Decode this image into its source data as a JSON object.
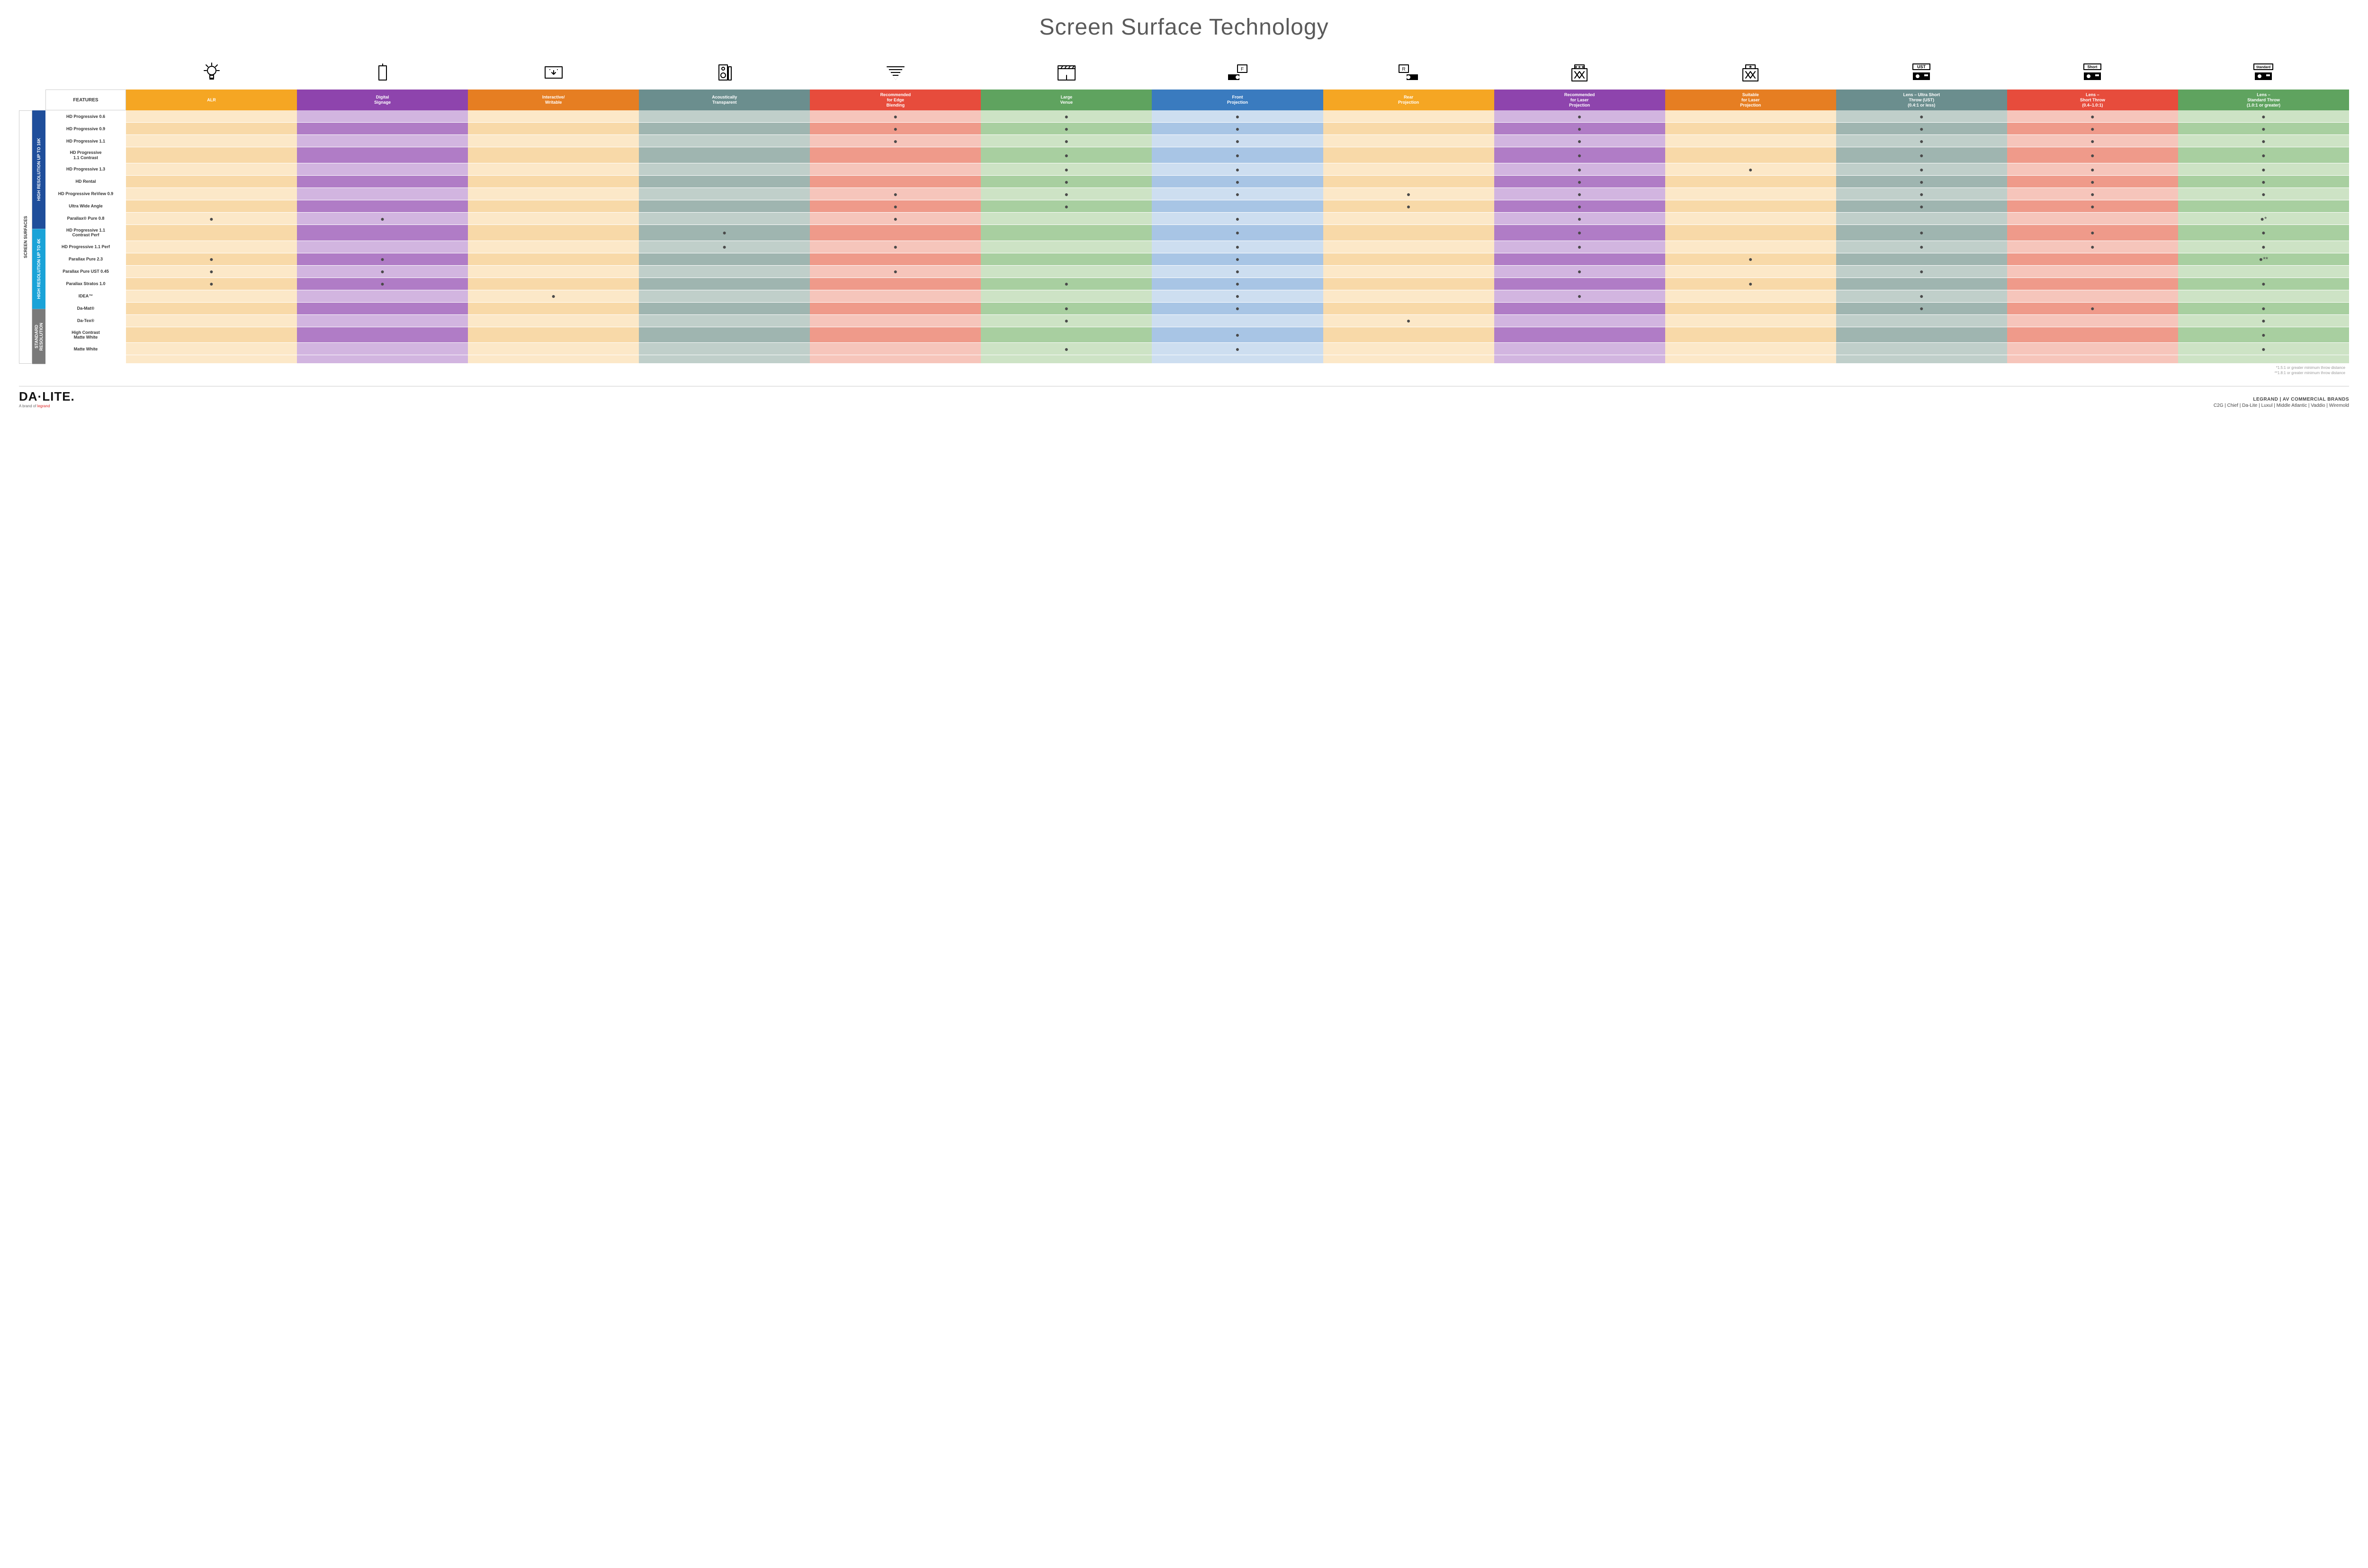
{
  "title": "Screen Surface Technology",
  "features_label": "FEATURES",
  "columns": [
    {
      "key": "alr",
      "label": "ALR",
      "color": "#f5a623",
      "alt": "#f8d9a8",
      "alt2": "#fce8c8"
    },
    {
      "key": "digital",
      "label": "Digital\nSignage",
      "color": "#8e44ad",
      "alt": "#b07cc6",
      "alt2": "#d2b5e0"
    },
    {
      "key": "interactive",
      "label": "Interactive/\nWritable",
      "color": "#e67e22",
      "alt": "#f8d9a8",
      "alt2": "#fce8c8"
    },
    {
      "key": "acoustic",
      "label": "Acoustically\nTransparent",
      "color": "#6b8e8e",
      "alt": "#9fb5b0",
      "alt2": "#c0cfca"
    },
    {
      "key": "edge",
      "label": "Recommended\nfor Edge\nBlending",
      "color": "#e74c3c",
      "alt": "#ef9a8a",
      "alt2": "#f6c5bb"
    },
    {
      "key": "large",
      "label": "Large\nVenue",
      "color": "#5fa35f",
      "alt": "#a8cfa0",
      "alt2": "#cde3c5"
    },
    {
      "key": "front",
      "label": "Front\nProjection",
      "color": "#3a7bbf",
      "alt": "#a8c5e5",
      "alt2": "#cddef0"
    },
    {
      "key": "rear",
      "label": "Rear\nProjection",
      "color": "#f5a623",
      "alt": "#f8d9a8",
      "alt2": "#fce8c8"
    },
    {
      "key": "reclaser",
      "label": "Recommended\nfor Laser\nProjection",
      "color": "#8e44ad",
      "alt": "#b07cc6",
      "alt2": "#d2b5e0"
    },
    {
      "key": "suitlaser",
      "label": "Suitable\nfor Laser\nProjection",
      "color": "#e67e22",
      "alt": "#f8d9a8",
      "alt2": "#fce8c8"
    },
    {
      "key": "ust",
      "label": "Lens – Ultra Short\nThrow (UST)\n(0.4:1 or less)",
      "color": "#6b8e8e",
      "alt": "#9fb5b0",
      "alt2": "#c0cfca"
    },
    {
      "key": "short",
      "label": "Lens –\nShort Throw\n(0.4–1.0:1)",
      "color": "#e74c3c",
      "alt": "#ef9a8a",
      "alt2": "#f6c5bb"
    },
    {
      "key": "std",
      "label": "Lens –\nStandard Throw\n(1.0:1 or greater)",
      "color": "#5fa35f",
      "alt": "#a8cfa0",
      "alt2": "#cde3c5"
    }
  ],
  "side_outer": {
    "label": "SCREEN SURFACES",
    "color": "#ffffff",
    "text": "#333"
  },
  "groups": [
    {
      "label": "HIGH RESOLUTION UP TO 16K",
      "color": "#1f4e9b",
      "rows": [
        {
          "name": "HD Progressive 0.6",
          "dots": {
            "edge": "●",
            "large": "●",
            "front": "●",
            "reclaser": "●",
            "ust": "●",
            "short": "●",
            "std": "●"
          }
        },
        {
          "name": "HD Progressive 0.9",
          "dots": {
            "edge": "●",
            "large": "●",
            "front": "●",
            "reclaser": "●",
            "ust": "●",
            "short": "●",
            "std": "●"
          }
        },
        {
          "name": "HD Progressive 1.1",
          "dots": {
            "edge": "●",
            "large": "●",
            "front": "●",
            "reclaser": "●",
            "ust": "●",
            "short": "●",
            "std": "●"
          }
        },
        {
          "name": "HD Progressive\n1.1 Contrast",
          "dots": {
            "large": "●",
            "front": "●",
            "reclaser": "●",
            "ust": "●",
            "short": "●",
            "std": "●"
          }
        },
        {
          "name": "HD Progressive 1.3",
          "dots": {
            "large": "●",
            "front": "●",
            "reclaser": "●",
            "suitlaser": "●",
            "ust": "●",
            "short": "●",
            "std": "●"
          }
        },
        {
          "name": "HD Rental",
          "dots": {
            "large": "●",
            "front": "●",
            "reclaser": "●",
            "ust": "●",
            "short": "●",
            "std": "●"
          }
        },
        {
          "name": "HD Progressive ReView 0.9",
          "dots": {
            "edge": "●",
            "large": "●",
            "front": "●",
            "rear": "●",
            "reclaser": "●",
            "ust": "●",
            "short": "●",
            "std": "●"
          }
        },
        {
          "name": "Ultra Wide Angle",
          "dots": {
            "edge": "●",
            "large": "●",
            "rear": "●",
            "reclaser": "●",
            "ust": "●",
            "short": "●"
          }
        },
        {
          "name": "Parallax® Pure 0.8",
          "dots": {
            "alr": "●",
            "digital": "●",
            "edge": "●",
            "front": "●",
            "reclaser": "●",
            "std": "●*"
          }
        }
      ]
    },
    {
      "label": "HIGH RESOLUTION UP TO 4K",
      "color": "#1aa3d8",
      "rows": [
        {
          "name": "HD Progressive 1.1\nContrast Perf",
          "dots": {
            "acoustic": "●",
            "front": "●",
            "reclaser": "●",
            "ust": "●",
            "short": "●",
            "std": "●"
          }
        },
        {
          "name": "HD Progressive 1.1 Perf",
          "dots": {
            "acoustic": "●",
            "edge": "●",
            "front": "●",
            "reclaser": "●",
            "ust": "●",
            "short": "●",
            "std": "●"
          }
        },
        {
          "name": "Parallax Pure 2.3",
          "dots": {
            "alr": "●",
            "digital": "●",
            "front": "●",
            "suitlaser": "●",
            "std": "●**"
          }
        },
        {
          "name": "Parallax Pure UST 0.45",
          "dots": {
            "alr": "●",
            "digital": "●",
            "edge": "●",
            "front": "●",
            "reclaser": "●",
            "ust": "●"
          }
        },
        {
          "name": "Parallax Stratos 1.0",
          "dots": {
            "alr": "●",
            "digital": "●",
            "large": "●",
            "front": "●",
            "suitlaser": "●",
            "std": "●"
          }
        },
        {
          "name": "IDEA™",
          "dots": {
            "interactive": "●",
            "front": "●",
            "reclaser": "●",
            "ust": "●"
          }
        }
      ]
    },
    {
      "label": "STANDARD\nRESOLUTION",
      "color": "#7a7a7a",
      "rows": [
        {
          "name": "Da-Mat®",
          "dots": {
            "large": "●",
            "front": "●",
            "ust": "●",
            "short": "●",
            "std": "●"
          }
        },
        {
          "name": "Da-Tex®",
          "dots": {
            "large": "●",
            "rear": "●",
            "std": "●"
          }
        },
        {
          "name": "High Contrast\nMatte White",
          "dots": {
            "front": "●",
            "std": "●"
          }
        },
        {
          "name": "Matte White",
          "dots": {
            "large": "●",
            "front": "●",
            "std": "●"
          }
        }
      ]
    }
  ],
  "footnotes": [
    "*1.5:1 or greater minimum throw distance",
    "**1.8:1 or greater minimum throw distance"
  ],
  "footer": {
    "logo": "DA·LITE.",
    "logosub_pre": "A brand of ",
    "logosub_brand": "legrand",
    "brands_top": "LEGRAND | AV COMMERCIAL BRANDS",
    "brands_list": "C2G  |  Chief  |  Da-Lite  |  Luxul  |  Middle Atlantic  |  Vaddio  |  Wiremold"
  },
  "icons": [
    "bulb",
    "signage",
    "touch",
    "speaker",
    "wide",
    "venue",
    "front",
    "rear",
    "reclaser",
    "suitlaser",
    "ust",
    "short",
    "standard"
  ]
}
